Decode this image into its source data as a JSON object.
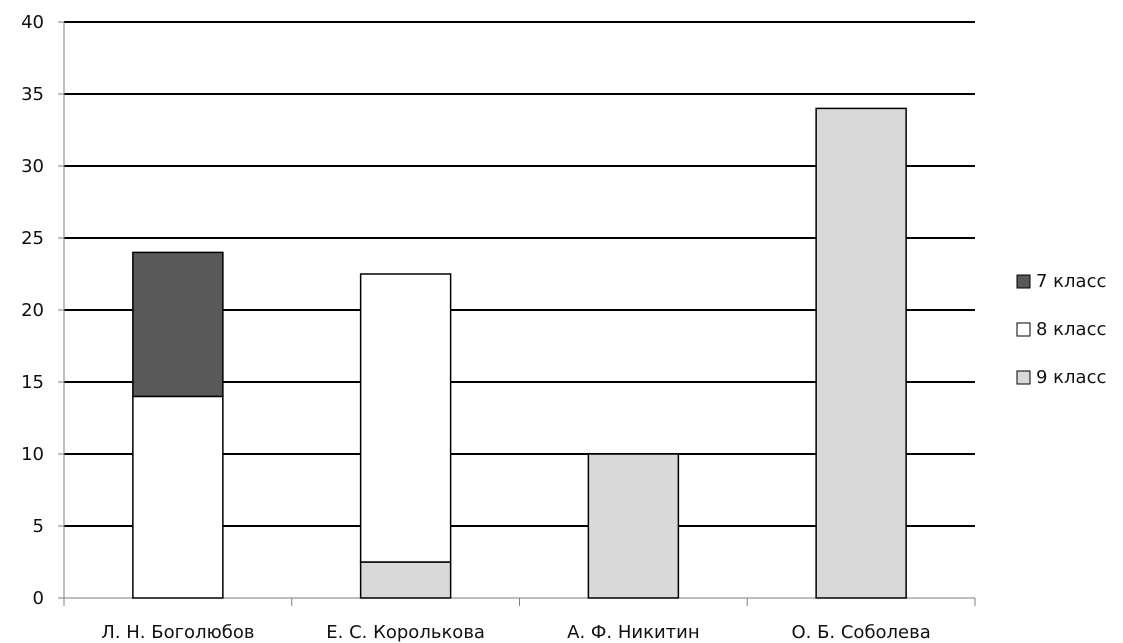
{
  "chart_data": {
    "type": "bar",
    "stacked": true,
    "categories": [
      "Л. Н. Боголюбов",
      "Е. С. Королькова",
      "А. Ф. Никитин",
      "О. Б. Соболева"
    ],
    "series": [
      {
        "name": "9 класс",
        "values": [
          0,
          2.5,
          10,
          34
        ],
        "color": "#d9d9d9"
      },
      {
        "name": "8 класс",
        "values": [
          14,
          20,
          0,
          0
        ],
        "color": "#ffffff"
      },
      {
        "name": "7 класс",
        "values": [
          10,
          0,
          0,
          0
        ],
        "color": "#595959"
      }
    ],
    "ylim": [
      0,
      40
    ],
    "yticks": [
      0,
      5,
      10,
      15,
      20,
      25,
      30,
      35,
      40
    ],
    "grid": true,
    "legend_position": "right",
    "legend_order": [
      "7 класс",
      "8 класс",
      "9 класс"
    ]
  }
}
